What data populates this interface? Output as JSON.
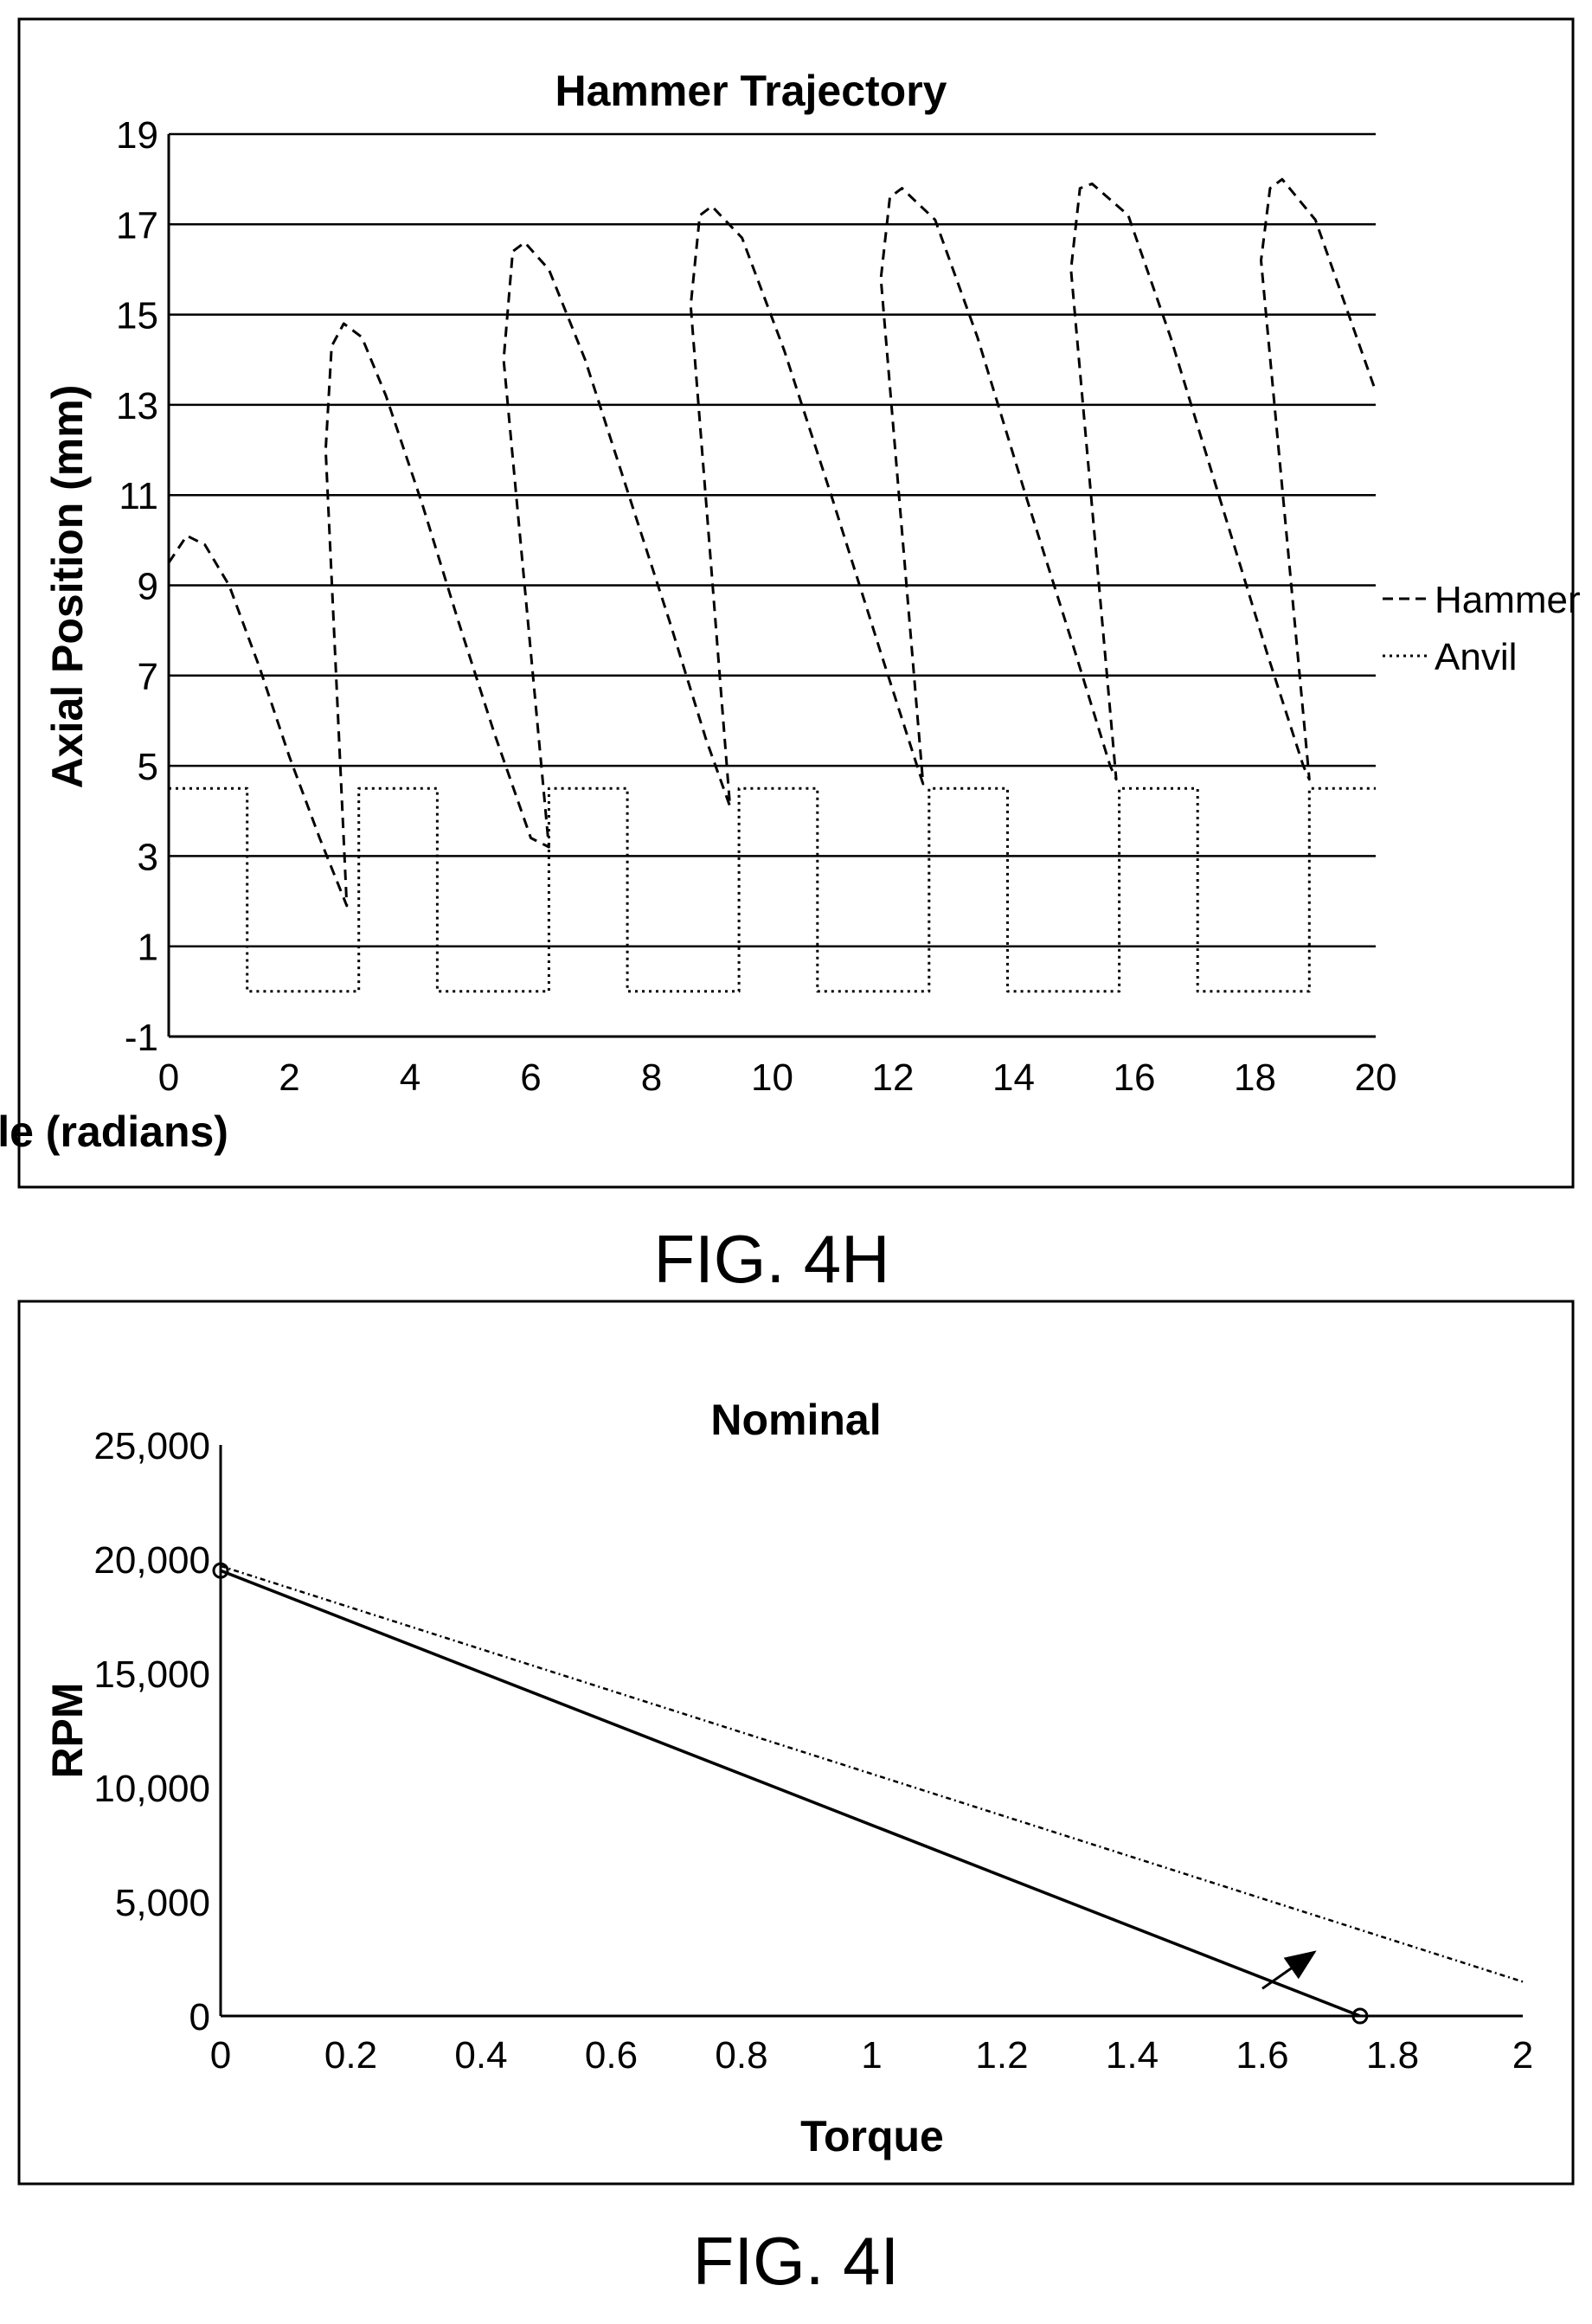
{
  "figures": [
    {
      "caption": "FIG. 4H"
    },
    {
      "caption": "FIG. 4I"
    }
  ],
  "chart_data": [
    {
      "type": "line",
      "title": "Hammer Trajectory",
      "xlabel": "Angle (radians)",
      "ylabel": "Axial Position (mm)",
      "xlim": [
        0,
        20
      ],
      "ylim": [
        -1,
        19
      ],
      "x_ticks": [
        "0",
        "2",
        "4",
        "6",
        "8",
        "10",
        "12",
        "14",
        "16",
        "18",
        "20"
      ],
      "y_ticks": [
        "-1",
        "1",
        "3",
        "5",
        "7",
        "9",
        "11",
        "13",
        "15",
        "17",
        "19"
      ],
      "grid": "horizontal",
      "legend_position": "right",
      "series": [
        {
          "name": "Hammer",
          "style": "dashed",
          "points": [
            [
              0,
              9.5
            ],
            [
              0.3,
              10.1
            ],
            [
              0.6,
              9.9
            ],
            [
              1.0,
              9.0
            ],
            [
              1.5,
              7.2
            ],
            [
              2.0,
              5.2
            ],
            [
              2.5,
              3.4
            ],
            [
              2.95,
              1.9
            ],
            [
              2.6,
              12.0
            ],
            [
              2.7,
              14.3
            ],
            [
              2.9,
              14.8
            ],
            [
              3.2,
              14.5
            ],
            [
              3.6,
              13.2
            ],
            [
              4.2,
              10.8
            ],
            [
              4.8,
              8.2
            ],
            [
              5.4,
              5.7
            ],
            [
              6.0,
              3.4
            ],
            [
              6.3,
              3.2
            ],
            [
              5.55,
              14.0
            ],
            [
              5.7,
              16.4
            ],
            [
              5.9,
              16.6
            ],
            [
              6.3,
              16.0
            ],
            [
              6.9,
              14.0
            ],
            [
              7.6,
              11.1
            ],
            [
              8.3,
              8.2
            ],
            [
              8.9,
              5.6
            ],
            [
              9.3,
              4.1
            ],
            [
              8.65,
              15.2
            ],
            [
              8.8,
              17.2
            ],
            [
              9.0,
              17.4
            ],
            [
              9.5,
              16.7
            ],
            [
              10.2,
              14.2
            ],
            [
              11.0,
              10.9
            ],
            [
              11.8,
              7.5
            ],
            [
              12.4,
              5.0
            ],
            [
              12.5,
              4.6
            ],
            [
              11.8,
              15.8
            ],
            [
              11.95,
              17.6
            ],
            [
              12.15,
              17.8
            ],
            [
              12.7,
              17.1
            ],
            [
              13.4,
              14.5
            ],
            [
              14.2,
              11.0
            ],
            [
              15.0,
              7.6
            ],
            [
              15.6,
              5.0
            ],
            [
              15.7,
              4.7
            ],
            [
              14.95,
              16.0
            ],
            [
              15.1,
              17.8
            ],
            [
              15.3,
              17.9
            ],
            [
              15.9,
              17.2
            ],
            [
              16.6,
              14.5
            ],
            [
              17.4,
              11.0
            ],
            [
              18.2,
              7.5
            ],
            [
              18.8,
              5.0
            ],
            [
              18.9,
              4.7
            ],
            [
              18.1,
              16.2
            ],
            [
              18.25,
              17.8
            ],
            [
              18.45,
              18.0
            ],
            [
              19.0,
              17.1
            ],
            [
              19.5,
              15.2
            ],
            [
              20.0,
              13.3
            ]
          ]
        },
        {
          "name": "Anvil",
          "style": "dotted",
          "points": [
            [
              0,
              4.5
            ],
            [
              1.3,
              4.5
            ],
            [
              1.3,
              0
            ],
            [
              3.15,
              0
            ],
            [
              3.15,
              4.5
            ],
            [
              4.45,
              4.5
            ],
            [
              4.45,
              0
            ],
            [
              6.3,
              0
            ],
            [
              6.3,
              4.5
            ],
            [
              7.6,
              4.5
            ],
            [
              7.6,
              0
            ],
            [
              9.45,
              0
            ],
            [
              9.45,
              4.5
            ],
            [
              10.75,
              4.5
            ],
            [
              10.75,
              0
            ],
            [
              12.6,
              0
            ],
            [
              12.6,
              4.5
            ],
            [
              13.9,
              4.5
            ],
            [
              13.9,
              0
            ],
            [
              15.75,
              0
            ],
            [
              15.75,
              4.5
            ],
            [
              17.05,
              4.5
            ],
            [
              17.05,
              0
            ],
            [
              18.9,
              0
            ],
            [
              18.9,
              4.5
            ],
            [
              20,
              4.5
            ]
          ]
        }
      ]
    },
    {
      "type": "line",
      "title": "Nominal",
      "xlabel": "Torque",
      "ylabel": "RPM",
      "xlim": [
        0,
        2
      ],
      "ylim": [
        0,
        25000
      ],
      "x_ticks": [
        "0",
        "0.2",
        "0.4",
        "0.6",
        "0.8",
        "1",
        "1.2",
        "1.4",
        "1.6",
        "1.8",
        "2"
      ],
      "y_ticks": [
        "0",
        "5,000",
        "10,000",
        "15,000",
        "20,000",
        "25,000"
      ],
      "grid": "none",
      "series": [
        {
          "style": "solid",
          "points": [
            [
              0,
              19500
            ],
            [
              1.75,
              0
            ]
          ],
          "markers": [
            [
              0,
              19500
            ],
            [
              1.75,
              0
            ]
          ]
        },
        {
          "style": "dash-dot",
          "points": [
            [
              0,
              19700
            ],
            [
              2.0,
              1500
            ]
          ]
        }
      ],
      "annotations": [
        {
          "type": "arrow",
          "from": [
            1.6,
            1200
          ],
          "to": [
            1.68,
            2800
          ]
        }
      ]
    }
  ]
}
